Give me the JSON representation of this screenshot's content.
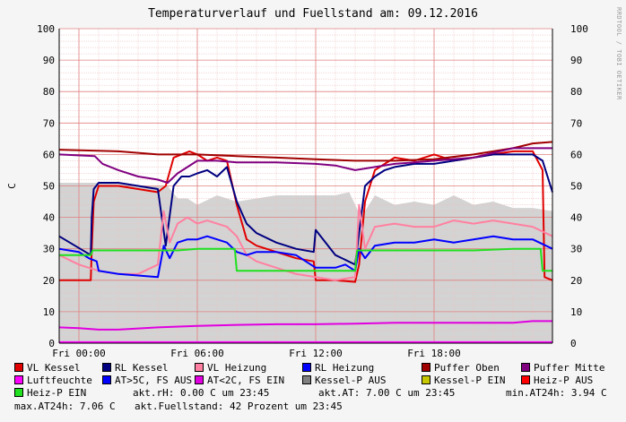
{
  "chart_data": {
    "type": "line",
    "title": "Temperaturverlauf und Fuellstand am: 09.12.2016",
    "ylabel": "C",
    "ylim": [
      0,
      100
    ],
    "yticks": [
      0,
      10,
      20,
      30,
      40,
      50,
      60,
      70,
      80,
      90,
      100
    ],
    "xlim": [
      -1,
      24
    ],
    "xticks": [
      {
        "label": "Fri 00:00",
        "hour": 0
      },
      {
        "label": "Fri 06:00",
        "hour": 6
      },
      {
        "label": "Fri 12:00",
        "hour": 12
      },
      {
        "label": "Fri 18:00",
        "hour": 18
      }
    ],
    "grid": true,
    "area": {
      "name": "Kessel-P AUS",
      "color": "#d3d3d3",
      "x": [
        -1,
        0.9,
        1.1,
        3.5,
        4.5,
        5.0,
        5.5,
        6.0,
        7.0,
        8.0,
        9.0,
        10.0,
        11.0,
        12.0,
        13.0,
        13.7,
        14.3,
        15.0,
        16.0,
        17.0,
        18.0,
        19.0,
        20.0,
        21.0,
        22.0,
        23.0,
        24.0
      ],
      "y": [
        51,
        51,
        51,
        50,
        50,
        46,
        46,
        44,
        47,
        45,
        46,
        47,
        47,
        47,
        47,
        48,
        40,
        47,
        44,
        45,
        44,
        47,
        44,
        45,
        43,
        43,
        42
      ]
    },
    "series": [
      {
        "name": "VL Kessel",
        "color": "#e00000",
        "x": [
          -1,
          0.6,
          0.65,
          0.75,
          1.0,
          2.0,
          3.0,
          4.0,
          4.4,
          4.8,
          5.2,
          5.6,
          6.0,
          6.5,
          7.0,
          7.5,
          8.0,
          8.5,
          9.0,
          10.0,
          11.0,
          11.9,
          12.0,
          13.0,
          14.0,
          14.2,
          14.5,
          15.0,
          15.5,
          16.0,
          17.0,
          18.0,
          19.0,
          20.0,
          21.0,
          22.0,
          23.0,
          23.5,
          23.6,
          24.0
        ],
        "y": [
          20,
          20,
          30,
          45,
          50,
          50,
          49,
          48,
          50,
          59,
          60,
          61,
          60,
          58,
          59,
          58,
          44,
          33,
          31,
          29,
          27,
          26,
          20,
          20,
          19.5,
          25,
          45,
          55,
          57,
          59,
          58,
          60,
          58,
          59,
          60,
          61,
          61,
          55,
          21,
          20
        ]
      },
      {
        "name": "RL Kessel",
        "color": "#000080",
        "x": [
          -1,
          0.6,
          0.65,
          0.75,
          1.0,
          2.0,
          3.0,
          4.0,
          4.4,
          4.8,
          5.2,
          5.6,
          6.0,
          6.5,
          7.0,
          7.5,
          8.0,
          8.5,
          9.0,
          10.0,
          11.0,
          11.9,
          12.0,
          13.0,
          14.0,
          14.2,
          14.5,
          15.0,
          15.5,
          16.0,
          17.0,
          18.0,
          19.0,
          20.0,
          21.0,
          22.0,
          23.0,
          23.5,
          24.0
        ],
        "y": [
          34,
          28,
          40,
          49,
          51,
          51,
          50,
          49,
          31,
          50,
          53,
          53,
          54,
          55,
          53,
          56,
          45,
          38,
          35,
          32,
          30,
          29,
          36,
          28,
          25,
          35,
          50,
          53,
          55,
          56,
          57,
          57,
          58,
          59,
          60,
          60,
          60,
          58,
          48
        ]
      },
      {
        "name": "VL Heizung",
        "color": "#ff80a0",
        "x": [
          -1,
          0.0,
          1.0,
          2.0,
          3.0,
          4.0,
          4.3,
          4.6,
          5.0,
          5.5,
          6.0,
          6.5,
          7.0,
          7.5,
          8.0,
          8.5,
          9.0,
          10.0,
          11.0,
          12.0,
          13.0,
          14.0,
          14.2,
          14.5,
          15.0,
          16.0,
          17.0,
          18.0,
          19.0,
          20.0,
          21.0,
          22.0,
          23.0,
          24.0
        ],
        "y": [
          28,
          25,
          23,
          22,
          22,
          25,
          42,
          32,
          38,
          40,
          38,
          39,
          38,
          37,
          34,
          28,
          26,
          24,
          22,
          21,
          20,
          21,
          44,
          30,
          37,
          38,
          37,
          37,
          39,
          38,
          39,
          38,
          37,
          34
        ]
      },
      {
        "name": "RL Heizung",
        "color": "#0000ff",
        "x": [
          -1,
          0.0,
          0.5,
          0.9,
          1.0,
          2.0,
          3.0,
          4.0,
          4.3,
          4.6,
          5.0,
          5.5,
          6.0,
          6.5,
          7.0,
          7.5,
          8.0,
          8.5,
          9.0,
          10.0,
          11.0,
          12.0,
          13.0,
          13.5,
          14.0,
          14.2,
          14.5,
          15.0,
          16.0,
          17.0,
          18.0,
          19.0,
          20.0,
          21.0,
          22.0,
          23.0,
          24.0
        ],
        "y": [
          30,
          29,
          27,
          26,
          23,
          22,
          21.5,
          21,
          31,
          27,
          32,
          33,
          33,
          34,
          33,
          32,
          29,
          28,
          29,
          29,
          28,
          24,
          24,
          25,
          23,
          30,
          27,
          31,
          32,
          32,
          33,
          32,
          33,
          34,
          33,
          33,
          30
        ]
      },
      {
        "name": "Puffer Oben",
        "color": "#a00000",
        "x": [
          -1,
          2,
          4,
          6,
          8,
          10,
          12,
          14,
          16,
          18,
          20,
          22,
          23,
          24
        ],
        "y": [
          61.5,
          61,
          60,
          60,
          59.5,
          59,
          58.5,
          58,
          58,
          58.5,
          60,
          62,
          63.5,
          64
        ]
      },
      {
        "name": "Puffer Mitte",
        "color": "#800080",
        "x": [
          -1,
          0.8,
          1.2,
          2.0,
          3.0,
          4.0,
          4.5,
          5.0,
          6.0,
          7.0,
          8.0,
          10.0,
          12.0,
          13.0,
          14.0,
          15.0,
          16.0,
          17.0,
          18.0,
          20.0,
          22.0,
          24.0
        ],
        "y": [
          60,
          59.5,
          57,
          55,
          53,
          52,
          51,
          54,
          58,
          58,
          57.5,
          57.5,
          57,
          56.5,
          55,
          56,
          57,
          57.5,
          58,
          59,
          62,
          62
        ]
      },
      {
        "name": "Luftfeuchte",
        "color": "#ff00ff",
        "x": [
          -1,
          24
        ],
        "y": [
          0.3,
          0.3
        ]
      },
      {
        "name": "AT>5C, FS AUS",
        "color": "#0000ff",
        "x": [],
        "y": []
      },
      {
        "name": "AT<2C, FS EIN",
        "color": "#e000e0",
        "x": [
          -1,
          0,
          1,
          2,
          4,
          6,
          8,
          10,
          12,
          14,
          16,
          18,
          20,
          22,
          23,
          24
        ],
        "y": [
          5,
          4.8,
          4.3,
          4.3,
          5,
          5.5,
          5.8,
          6,
          6,
          6.2,
          6.5,
          6.5,
          6.5,
          6.5,
          7,
          7
        ]
      },
      {
        "name": "Kessel-P AUS",
        "color": "#808080",
        "x": [],
        "y": []
      },
      {
        "name": "Kessel-P EIN",
        "color": "#c8c800",
        "x": [],
        "y": []
      },
      {
        "name": "Heiz-P AUS",
        "color": "#ff0000",
        "x": [],
        "y": []
      },
      {
        "name": "Heiz-P EIN",
        "color": "#20e020",
        "x": [
          -1,
          0.6,
          0.7,
          2.0,
          4.0,
          5.0,
          6.0,
          7.0,
          7.9,
          8.0,
          14.0,
          14.1,
          16.0,
          18.0,
          20.0,
          22.0,
          23.4,
          23.5,
          24.0
        ],
        "y": [
          28,
          28,
          29.5,
          29.5,
          29.5,
          29.5,
          30,
          30,
          30,
          23,
          23,
          29.5,
          29.5,
          29.5,
          29.5,
          30,
          30,
          23,
          23
        ]
      }
    ]
  },
  "stats": {
    "rh": "akt.rH: 0.00 C um 23:45",
    "at": "akt.AT: 7.00 C um 23:45",
    "min": "min.AT24h: 3.94 C",
    "max": "max.AT24h: 7.06 C",
    "fill": "akt.Fuellstand:   42 Prozent um 23:45"
  },
  "watermark": "RRDTOOL / TOBI OETIKER"
}
